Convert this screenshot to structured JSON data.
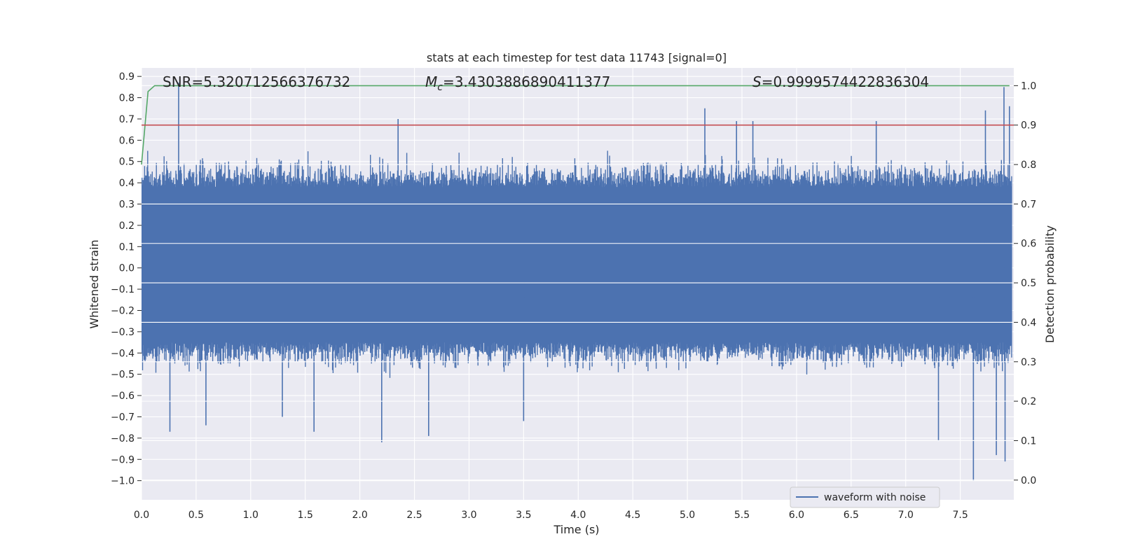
{
  "chart_data": {
    "type": "line",
    "title": "stats at each timestep for test data 11743 [signal=0]",
    "xlabel": "Time (s)",
    "ylabel": "Whitened strain",
    "y2label": "Detection probability",
    "xlim": [
      0.0,
      7.99
    ],
    "ylim": [
      -1.09,
      0.94
    ],
    "y2lim": [
      -0.05,
      1.045
    ],
    "x_ticks": [
      "0.0",
      "0.5",
      "1.0",
      "1.5",
      "2.0",
      "2.5",
      "3.0",
      "3.5",
      "4.0",
      "4.5",
      "5.0",
      "5.5",
      "6.0",
      "6.5",
      "7.0",
      "7.5"
    ],
    "y_ticks": [
      "−1.0",
      "−0.9",
      "−0.8",
      "−0.7",
      "−0.6",
      "−0.5",
      "−0.4",
      "−0.3",
      "−0.2",
      "−0.1",
      "0.0",
      "0.1",
      "0.2",
      "0.3",
      "0.4",
      "0.5",
      "0.6",
      "0.7",
      "0.8",
      "0.9"
    ],
    "y2_ticks": [
      "0.0",
      "0.1",
      "0.2",
      "0.3",
      "0.4",
      "0.5",
      "0.6",
      "0.7",
      "0.8",
      "0.9",
      "1.0"
    ],
    "grid": true,
    "legend_position": "lower-right",
    "annotations": {
      "snr": "SNR=5.320712566376732",
      "mc_symbol": "M",
      "mc_subscript": "c",
      "mc_value": "=3.4303886890411377",
      "s_symbol": "S",
      "s_value": "=0.9999574422836304"
    },
    "series": [
      {
        "name": "waveform with noise",
        "axis": "left",
        "color": "#4c72b0",
        "style": "noise-band",
        "typical_envelope": [
          -0.35,
          0.38
        ],
        "spikes": [
          {
            "x": 0.34,
            "y": 0.87
          },
          {
            "x": 0.26,
            "y": -0.77
          },
          {
            "x": 0.59,
            "y": -0.74
          },
          {
            "x": 1.29,
            "y": -0.7
          },
          {
            "x": 1.58,
            "y": -0.77
          },
          {
            "x": 2.2,
            "y": -0.82
          },
          {
            "x": 2.35,
            "y": 0.7
          },
          {
            "x": 2.63,
            "y": -0.79
          },
          {
            "x": 3.5,
            "y": -0.72
          },
          {
            "x": 5.16,
            "y": 0.75
          },
          {
            "x": 5.45,
            "y": 0.69
          },
          {
            "x": 5.6,
            "y": 0.69
          },
          {
            "x": 6.73,
            "y": 0.69
          },
          {
            "x": 7.3,
            "y": -0.81
          },
          {
            "x": 7.62,
            "y": -1.0
          },
          {
            "x": 7.73,
            "y": 0.74
          },
          {
            "x": 7.83,
            "y": -0.88
          },
          {
            "x": 7.9,
            "y": 0.85
          },
          {
            "x": 7.91,
            "y": -0.91
          },
          {
            "x": 7.95,
            "y": 0.76
          }
        ]
      },
      {
        "axis": "right",
        "color": "#55a868",
        "x": [
          0.0,
          0.06,
          0.12,
          0.3,
          7.95
        ],
        "values": [
          0.8,
          0.985,
          1.0,
          1.0,
          1.0
        ]
      },
      {
        "axis": "right",
        "color": "#c44e52",
        "x": [
          0.0,
          7.99
        ],
        "values": [
          0.9,
          0.9
        ]
      }
    ]
  }
}
